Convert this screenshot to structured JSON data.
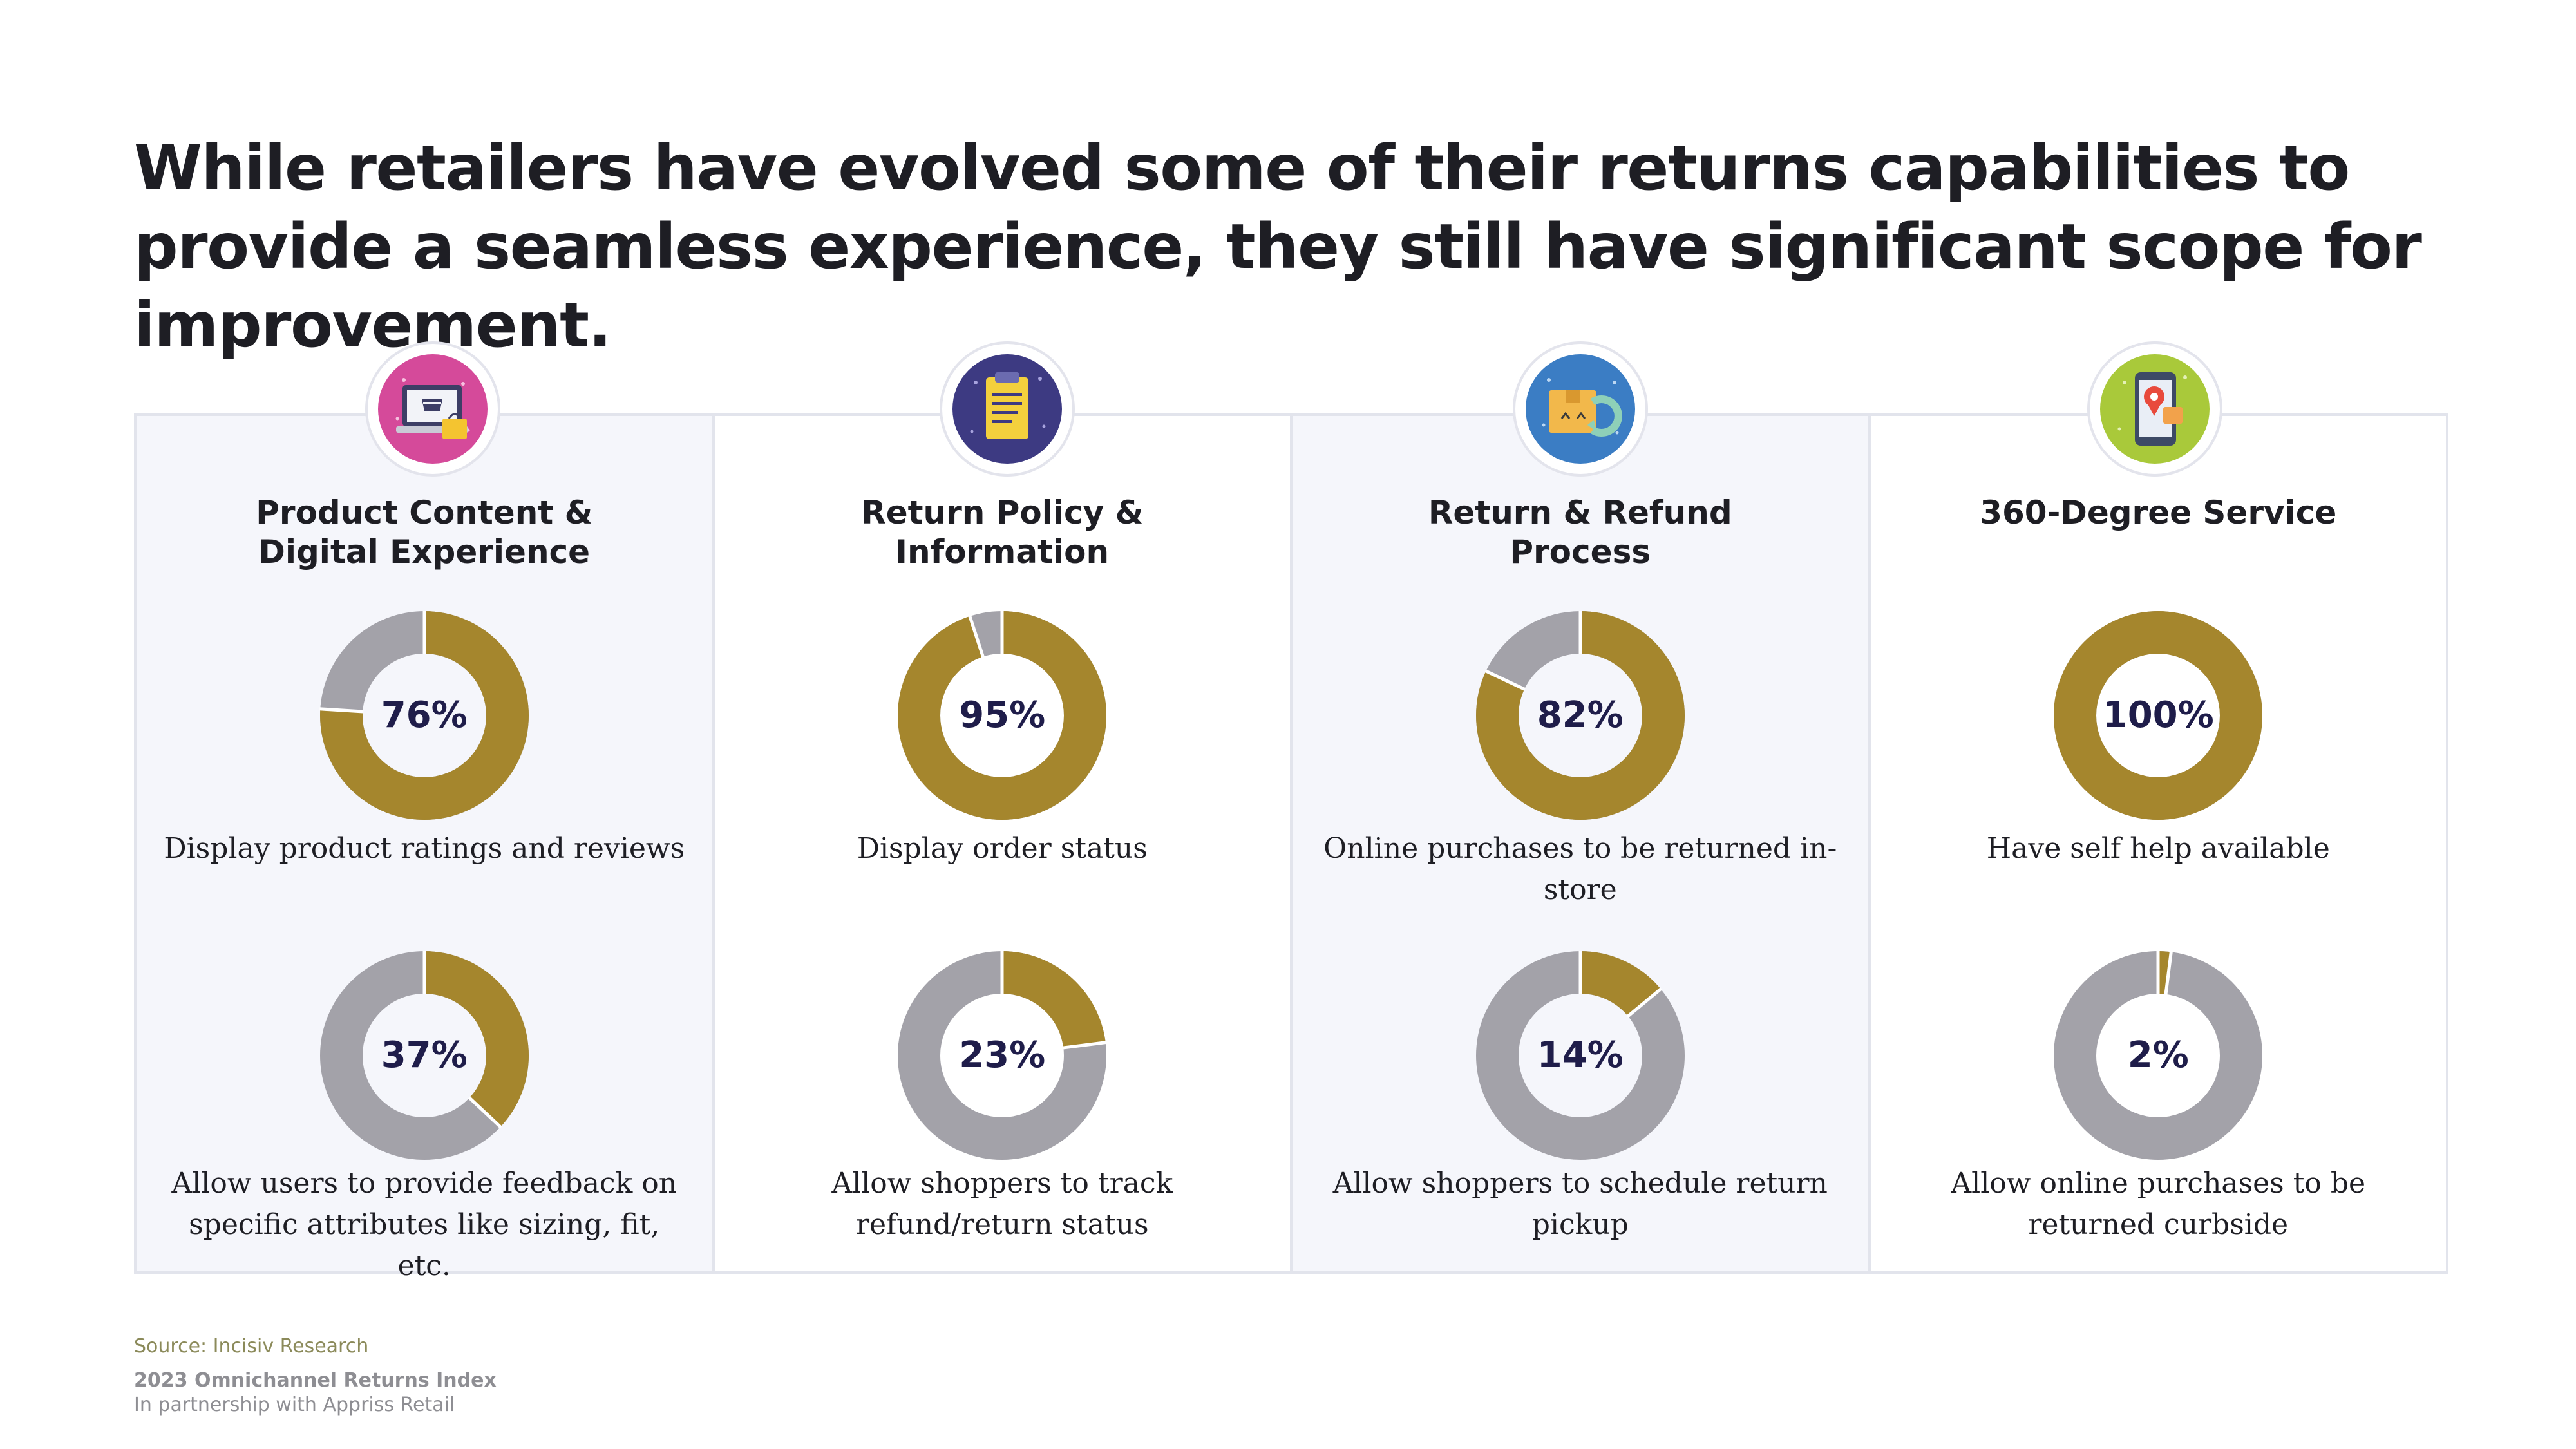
{
  "headline": "While retailers have evolved some of their returns capabilities to provide a seamless experience, they still have significant scope for improvement.",
  "colors": {
    "gold": "#a5862d",
    "gray": "#a3a2a9",
    "percent_text": "#1f1d4a"
  },
  "icons": [
    "laptop-shopping-icon",
    "policy-document-icon",
    "return-box-icon",
    "mobile-location-icon"
  ],
  "chart_data": {
    "type": "donut",
    "columns": [
      {
        "title": "Product Content &\nDigital Experience",
        "donuts": [
          {
            "value": 76,
            "label": "76%",
            "description": "Display product ratings and reviews"
          },
          {
            "value": 37,
            "label": "37%",
            "description": "Allow users to provide feedback on specific attributes like sizing, fit, etc."
          }
        ]
      },
      {
        "title": "Return Policy &\nInformation",
        "donuts": [
          {
            "value": 95,
            "label": "95%",
            "description": "Display order status"
          },
          {
            "value": 23,
            "label": "23%",
            "description": "Allow shoppers to track refund/return status"
          }
        ]
      },
      {
        "title": "Return & Refund\nProcess",
        "donuts": [
          {
            "value": 82,
            "label": "82%",
            "description": "Online purchases to be returned in-store"
          },
          {
            "value": 14,
            "label": "14%",
            "description": "Allow shoppers to schedule return pickup"
          }
        ]
      },
      {
        "title": "360-Degree Service",
        "donuts": [
          {
            "value": 100,
            "label": "100%",
            "description": "Have self help available"
          },
          {
            "value": 2,
            "label": "2%",
            "description": "Allow online purchases to be returned curbside"
          }
        ]
      }
    ]
  },
  "footer": {
    "source": "Source: Incisiv Research",
    "index": "2023 Omnichannel Returns Index",
    "partnership": "In partnership with Appriss Retail"
  }
}
